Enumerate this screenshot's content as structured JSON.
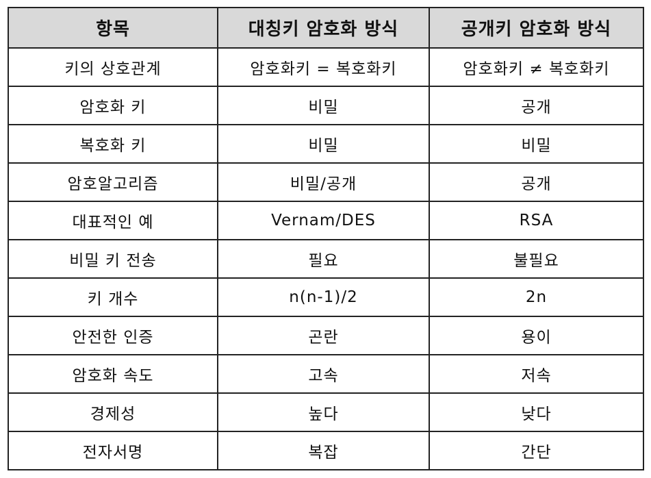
{
  "table": {
    "headers": [
      "항목",
      "대칭키 암호화 방식",
      "공개키 암호화 방식"
    ],
    "rows": [
      [
        "키의 상호관계",
        "암호화키 = 복호화키",
        "암호화키 ≠ 복호화키"
      ],
      [
        "암호화 키",
        "비밀",
        "공개"
      ],
      [
        "복호화 키",
        "비밀",
        "비밀"
      ],
      [
        "암호알고리즘",
        "비밀/공개",
        "공개"
      ],
      [
        "대표적인 예",
        "Vernam/DES",
        "RSA"
      ],
      [
        "비밀 키 전송",
        "필요",
        "불필요"
      ],
      [
        "키 개수",
        "n(n-1)/2",
        "2n"
      ],
      [
        "안전한 인증",
        "곤란",
        "용이"
      ],
      [
        "암호화 속도",
        "고속",
        "저속"
      ],
      [
        "경제성",
        "높다",
        "낮다"
      ],
      [
        "전자서명",
        "복잡",
        "간단"
      ]
    ]
  },
  "colors": {
    "header_background": "#d9d9d9",
    "border": "#222222",
    "text": "#111111"
  }
}
